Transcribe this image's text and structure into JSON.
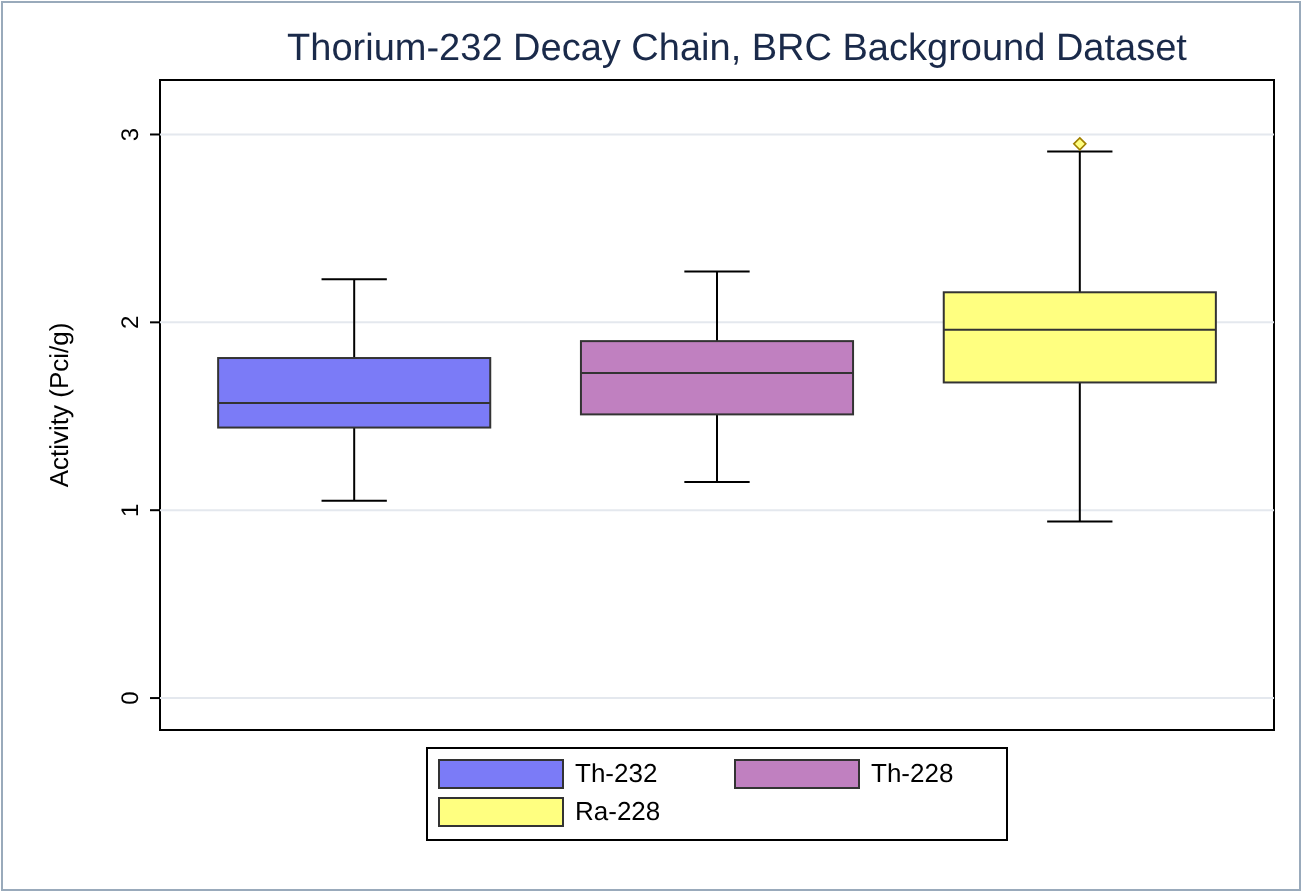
{
  "chart_data": {
    "type": "box",
    "title": "Thorium-232 Decay Chain, BRC Background Dataset",
    "ylabel": "Activity (Pci/g)",
    "categories": [
      null
    ],
    "series": [
      {
        "name": "Th-232",
        "color": "#7b7bf7",
        "boxes": [
          {
            "low": 1.05,
            "q1": 1.44,
            "median": 1.57,
            "q3": 1.81,
            "high": 2.23
          }
        ]
      },
      {
        "name": "Th-228",
        "color": "#c080c0",
        "boxes": [
          {
            "low": 1.15,
            "q1": 1.51,
            "median": 1.73,
            "q3": 1.9,
            "high": 2.27
          }
        ]
      },
      {
        "name": "Ra-228",
        "color": "#ffff80",
        "boxes": [
          {
            "low": 0.94,
            "q1": 1.68,
            "median": 1.96,
            "q3": 2.16,
            "high": 2.91,
            "outliers": [
              2.95
            ]
          }
        ]
      }
    ],
    "ylim": [
      -0.17,
      3.29
    ],
    "yticks": [
      0,
      1,
      2,
      3
    ],
    "grid": "y",
    "legend": "bottom",
    "tick_labels": "y"
  }
}
